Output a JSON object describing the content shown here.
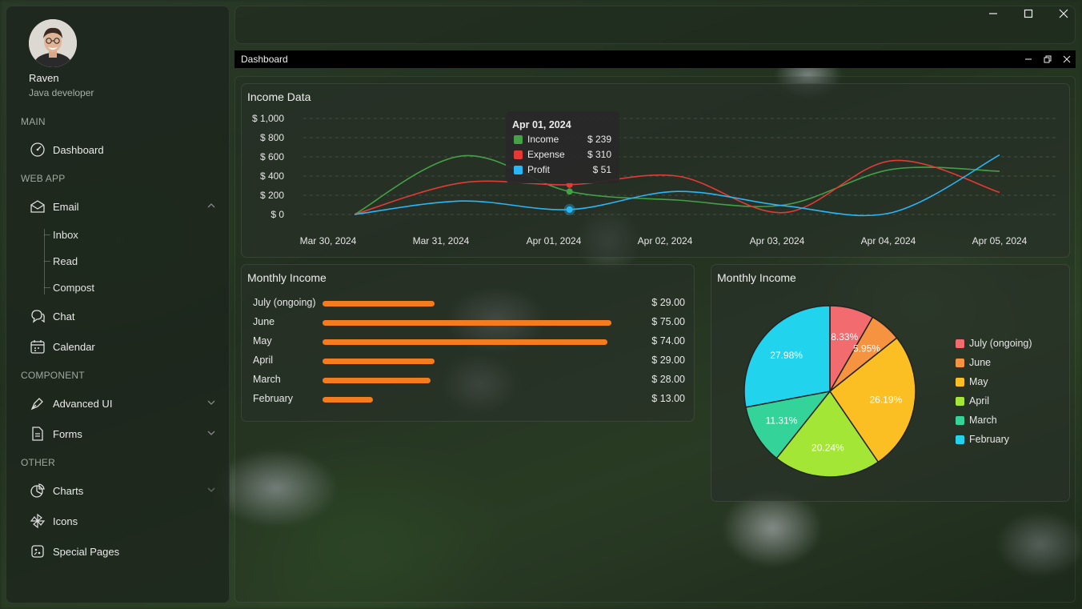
{
  "user": {
    "name": "Raven",
    "role": "Java developer"
  },
  "sidebar": {
    "sections": [
      "MAIN",
      "WEB APP",
      "COMPONENT",
      "OTHER"
    ],
    "items": {
      "dashboard": "Dashboard",
      "email": "Email",
      "inbox": "Inbox",
      "read": "Read",
      "compost": "Compost",
      "chat": "Chat",
      "calendar": "Calendar",
      "advanced_ui": "Advanced UI",
      "forms": "Forms",
      "charts": "Charts",
      "icons": "Icons",
      "special_pages": "Special Pages"
    }
  },
  "window": {
    "title": "Dashboard"
  },
  "income_chart": {
    "title": "Income Data",
    "tooltip": {
      "date": "Apr 01, 2024",
      "rows": [
        {
          "name": "Income",
          "value": "$ 239",
          "color": "#43a047"
        },
        {
          "name": "Expense",
          "value": "$ 310",
          "color": "#e53935"
        },
        {
          "name": "Profit",
          "value": "$ 51",
          "color": "#29b6f6"
        }
      ]
    }
  },
  "chart_data": [
    {
      "type": "line",
      "title": "Income Data",
      "x": [
        "Mar 30, 2024",
        "Mar 31, 2024",
        "Apr 01, 2024",
        "Apr 02, 2024",
        "Apr 03, 2024",
        "Apr 04, 2024",
        "Apr 05, 2024"
      ],
      "y_ticks": [
        "$ 1,000",
        "$ 800",
        "$ 600",
        "$ 400",
        "$ 200",
        "$ 0"
      ],
      "ylim": [
        0,
        1000
      ],
      "series": [
        {
          "name": "Income",
          "color": "#43a047",
          "values": [
            0,
            610,
            239,
            150,
            100,
            470,
            450
          ]
        },
        {
          "name": "Expense",
          "color": "#e53935",
          "values": [
            0,
            330,
            310,
            400,
            20,
            560,
            230
          ]
        },
        {
          "name": "Profit",
          "color": "#29b6f6",
          "values": [
            0,
            140,
            51,
            240,
            90,
            20,
            620
          ]
        }
      ],
      "grid": true
    },
    {
      "type": "bar",
      "title": "Monthly Income",
      "orientation": "horizontal",
      "categories": [
        "July (ongoing)",
        "June",
        "May",
        "April",
        "March",
        "February"
      ],
      "values": [
        29,
        75,
        74,
        29,
        28,
        13
      ],
      "value_labels": [
        "$ 29.00",
        "$ 75.00",
        "$ 74.00",
        "$ 29.00",
        "$ 28.00",
        "$ 13.00"
      ],
      "max": 75,
      "color": "#f47c1c"
    },
    {
      "type": "pie",
      "title": "Monthly Income",
      "labels": [
        "July (ongoing)",
        "June",
        "May",
        "April",
        "March",
        "February"
      ],
      "values": [
        8.33,
        5.95,
        26.19,
        20.24,
        11.31,
        27.98
      ],
      "value_labels": [
        "8.33%",
        "5.95%",
        "26.19%",
        "20.24%",
        "11.31%",
        "27.98%"
      ],
      "colors": [
        "#f26b6f",
        "#f59340",
        "#fbbf24",
        "#a3e635",
        "#34d399",
        "#22d3ee"
      ],
      "legend": "right"
    }
  ]
}
